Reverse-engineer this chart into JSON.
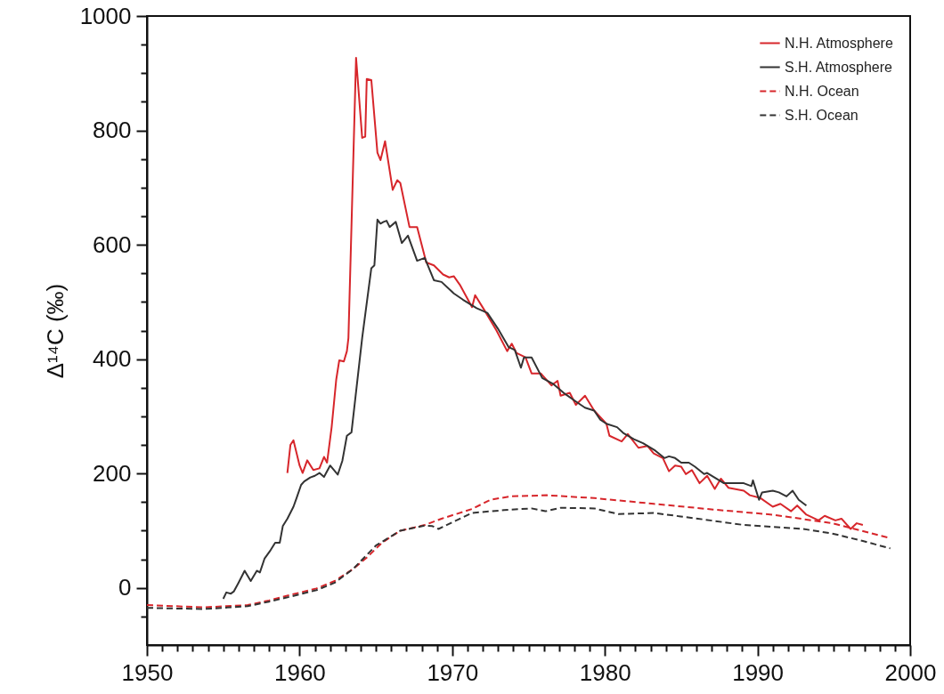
{
  "chart_data": {
    "type": "line",
    "ylabel": "Δ¹⁴C (‰)",
    "xlim": [
      1950,
      2000
    ],
    "ylim": [
      -100,
      1000
    ],
    "xticks": [
      1950,
      {
        "value": 1951,
        "label": null
      },
      {
        "value": 1952,
        "label": null
      },
      {
        "value": 1953,
        "label": null
      },
      {
        "value": 1954,
        "label": null
      },
      {
        "value": 1955,
        "label": null
      },
      {
        "value": 1956,
        "label": null
      },
      {
        "value": 1957,
        "label": null
      },
      {
        "value": 1958,
        "label": null
      },
      {
        "value": 1959,
        "label": null
      },
      1960,
      {
        "value": 1961,
        "label": null
      },
      {
        "value": 1962,
        "label": null
      },
      {
        "value": 1963,
        "label": null
      },
      {
        "value": 1964,
        "label": null
      },
      {
        "value": 1965,
        "label": null
      },
      {
        "value": 1966,
        "label": null
      },
      {
        "value": 1967,
        "label": null
      },
      {
        "value": 1968,
        "label": null
      },
      {
        "value": 1969,
        "label": null
      },
      1970,
      {
        "value": 1971,
        "label": null
      },
      {
        "value": 1972,
        "label": null
      },
      {
        "value": 1973,
        "label": null
      },
      {
        "value": 1974,
        "label": null
      },
      {
        "value": 1975,
        "label": null
      },
      {
        "value": 1976,
        "label": null
      },
      {
        "value": 1977,
        "label": null
      },
      {
        "value": 1978,
        "label": null
      },
      {
        "value": 1979,
        "label": null
      },
      1980,
      {
        "value": 1981,
        "label": null
      },
      {
        "value": 1982,
        "label": null
      },
      {
        "value": 1983,
        "label": null
      },
      {
        "value": 1984,
        "label": null
      },
      {
        "value": 1985,
        "label": null
      },
      {
        "value": 1986,
        "label": null
      },
      {
        "value": 1987,
        "label": null
      },
      {
        "value": 1988,
        "label": null
      },
      {
        "value": 1989,
        "label": null
      },
      1990,
      {
        "value": 1991,
        "label": null
      },
      {
        "value": 1992,
        "label": null
      },
      {
        "value": 1993,
        "label": null
      },
      {
        "value": 1994,
        "label": null
      },
      {
        "value": 1995,
        "label": null
      },
      {
        "value": 1996,
        "label": null
      },
      {
        "value": 1997,
        "label": null
      },
      {
        "value": 1998,
        "label": null
      },
      {
        "value": 1999,
        "label": null
      },
      2000
    ],
    "yticks": [
      {
        "value": -50,
        "label": null
      },
      0,
      {
        "value": 50,
        "label": null
      },
      {
        "value": 100,
        "label": null
      },
      {
        "value": 150,
        "label": null
      },
      200,
      {
        "value": 250,
        "label": null
      },
      {
        "value": 300,
        "label": null
      },
      {
        "value": 350,
        "label": null
      },
      400,
      {
        "value": 450,
        "label": null
      },
      {
        "value": 500,
        "label": null
      },
      {
        "value": 550,
        "label": null
      },
      600,
      {
        "value": 650,
        "label": null
      },
      {
        "value": 700,
        "label": null
      },
      {
        "value": 750,
        "label": null
      },
      800,
      {
        "value": 850,
        "label": null
      },
      {
        "value": 900,
        "label": null
      },
      {
        "value": 950,
        "label": null
      },
      1000
    ],
    "legend": "top right",
    "series": [
      {
        "name": "N.H. Atmosphere",
        "color": "#d7262b",
        "line_style": "solid",
        "x": [
          1959.2,
          1959.4,
          1959.6,
          1960.0,
          1960.2,
          1960.5,
          1960.9,
          1961.3,
          1961.6,
          1961.8,
          1962.1,
          1962.4,
          1962.6,
          1962.9,
          1963.1,
          1963.2,
          1963.7,
          1964.1,
          1964.3,
          1964.4,
          1964.7,
          1965.1,
          1965.3,
          1965.6,
          1966.1,
          1966.4,
          1966.6,
          1967.2,
          1967.7,
          1968.3,
          1968.8,
          1969.4,
          1969.8,
          1970.1,
          1970.5,
          1971.3,
          1971.5,
          1972.1,
          1972.9,
          1973.6,
          1973.9,
          1974.2,
          1974.8,
          1975.2,
          1975.8,
          1976.5,
          1976.9,
          1977.1,
          1977.7,
          1978.1,
          1978.7,
          1979.3,
          1980.1,
          1980.3,
          1981.1,
          1981.5,
          1982.2,
          1982.8,
          1983.2,
          1983.8,
          1984.2,
          1984.6,
          1985.0,
          1985.3,
          1985.7,
          1986.2,
          1986.7,
          1987.2,
          1987.6,
          1988.1,
          1989.1,
          1989.5,
          1990.2,
          1991.0,
          1991.5,
          1992.2,
          1992.6,
          1993.2,
          1994.0,
          1994.4,
          1995.1,
          1995.5,
          1996.1,
          1996.5,
          1996.9
        ],
        "values": [
          201,
          250,
          258,
          214,
          201,
          223,
          206,
          209,
          229,
          219,
          281,
          364,
          398,
          396,
          414,
          437,
          927,
          787,
          789,
          890,
          888,
          761,
          748,
          781,
          696,
          713,
          708,
          631,
          631,
          569,
          564,
          548,
          543,
          545,
          530,
          491,
          512,
          486,
          450,
          414,
          427,
          411,
          403,
          375,
          375,
          354,
          362,
          336,
          341,
          320,
          336,
          310,
          287,
          266,
          256,
          269,
          245,
          248,
          235,
          227,
          204,
          214,
          212,
          199,
          206,
          183,
          196,
          173,
          191,
          175,
          170,
          162,
          157,
          142,
          147,
          134,
          144,
          128,
          118,
          126,
          118,
          121,
          103,
          113,
          110
        ]
      },
      {
        "name": "S.H. Atmosphere",
        "color": "#333333",
        "line_style": "solid",
        "x": [
          1955.0,
          1955.2,
          1955.5,
          1955.7,
          1956.0,
          1956.4,
          1956.8,
          1957.2,
          1957.4,
          1957.7,
          1958.1,
          1958.4,
          1958.7,
          1958.9,
          1959.2,
          1959.6,
          1959.8,
          1960.1,
          1960.3,
          1960.7,
          1961.0,
          1961.3,
          1961.6,
          1962.0,
          1962.5,
          1962.8,
          1963.1,
          1963.4,
          1964.1,
          1964.7,
          1964.9,
          1965.1,
          1965.3,
          1965.5,
          1965.7,
          1965.9,
          1966.3,
          1966.7,
          1967.1,
          1967.7,
          1968.2,
          1968.8,
          1969.3,
          1970.1,
          1970.7,
          1971.6,
          1972.3,
          1973.0,
          1973.7,
          1974.1,
          1974.5,
          1974.7,
          1975.2,
          1975.9,
          1976.6,
          1977.3,
          1978.1,
          1978.7,
          1979.3,
          1979.7,
          1980.1,
          1980.8,
          1981.2,
          1981.9,
          1982.5,
          1983.3,
          1983.9,
          1984.2,
          1984.6,
          1985.0,
          1985.5,
          1985.9,
          1986.5,
          1986.7,
          1987.3,
          1987.8,
          1989.1,
          1989.6,
          1989.7,
          1990.1,
          1990.3,
          1991.0,
          1991.4,
          1991.9,
          1992.3,
          1992.7,
          1993.2
        ],
        "values": [
          -19,
          -8,
          -10,
          -6,
          9,
          30,
          12,
          30,
          27,
          51,
          66,
          79,
          79,
          108,
          121,
          142,
          157,
          180,
          186,
          193,
          196,
          201,
          194,
          214,
          198,
          222,
          266,
          272,
          437,
          559,
          564,
          644,
          637,
          640,
          642,
          631,
          640,
          603,
          616,
          572,
          577,
          538,
          535,
          515,
          504,
          489,
          481,
          453,
          421,
          416,
          385,
          403,
          403,
          367,
          357,
          341,
          326,
          315,
          310,
          294,
          287,
          281,
          271,
          260,
          253,
          240,
          227,
          230,
          227,
          219,
          219,
          212,
          199,
          201,
          191,
          183,
          183,
          178,
          188,
          154,
          167,
          170,
          167,
          160,
          170,
          154,
          144
        ]
      },
      {
        "name": "N.H. Ocean",
        "color": "#d7262b",
        "line_style": "dashed",
        "x": [
          1950,
          1953.7,
          1956.6,
          1958.0,
          1959.6,
          1961.1,
          1962.3,
          1963.5,
          1964.4,
          1965.4,
          1966.6,
          1968.2,
          1969.3,
          1971.3,
          1972.5,
          1973.8,
          1976.2,
          1979.3,
          1983.2,
          1987.1,
          1991.0,
          1994.9,
          1998.7
        ],
        "values": [
          -30,
          -34,
          -30,
          -22,
          -11,
          -1,
          12,
          33,
          53,
          79,
          100,
          110,
          121,
          138,
          154,
          160,
          162,
          157,
          147,
          137,
          128,
          113,
          87
        ]
      },
      {
        "name": "S.H. Ocean",
        "color": "#333333",
        "line_style": "dashed",
        "x": [
          1950,
          1953.7,
          1956.6,
          1958.0,
          1959.6,
          1961.1,
          1962.3,
          1963.5,
          1965.0,
          1966.6,
          1968.2,
          1968.7,
          1969.1,
          1971.3,
          1973.4,
          1975.2,
          1976.1,
          1977.1,
          1979.3,
          1980.9,
          1983.2,
          1986.1,
          1989.1,
          1993.0,
          1994.9,
          1996.9,
          1998.7
        ],
        "values": [
          -35,
          -37,
          -32,
          -24,
          -14,
          -4,
          9,
          33,
          74,
          100,
          109,
          108,
          103,
          131,
          136,
          139,
          134,
          140,
          139,
          129,
          131,
          121,
          110,
          103,
          95,
          82,
          69
        ]
      }
    ]
  }
}
